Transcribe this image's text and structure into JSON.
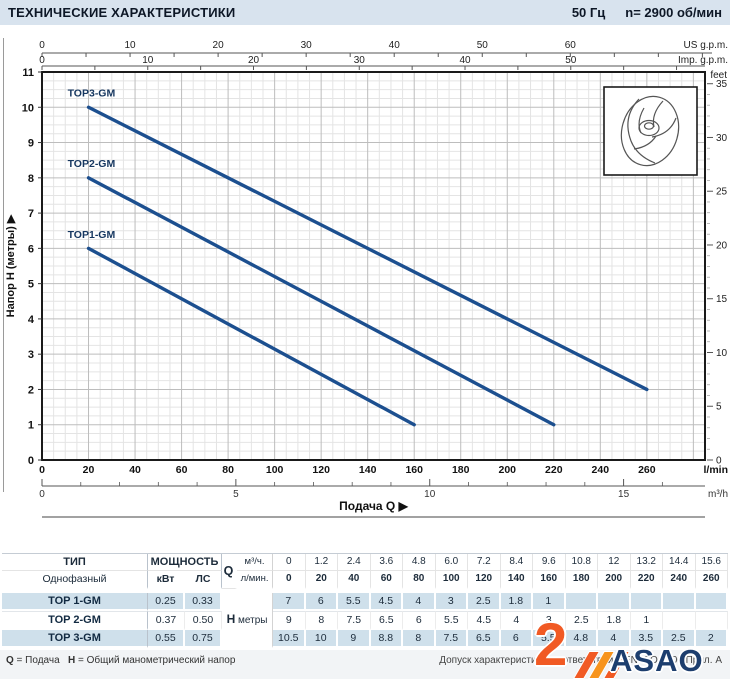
{
  "header": {
    "title": "ТЕХНИЧЕСКИЕ ХАРАКТЕРИСТИКИ",
    "frequency": "50 Гц",
    "speed": "n= 2900  об/мин"
  },
  "chart_data": {
    "type": "line",
    "title": "",
    "xlabel": "Подача Q",
    "ylabel": "Напор H (метры)",
    "x_lmin": [
      0,
      20,
      40,
      60,
      80,
      100,
      120,
      140,
      160,
      180,
      200,
      220,
      240,
      260
    ],
    "series": [
      {
        "name": "TOP1-GM",
        "H_m": [
          7,
          6,
          5.5,
          4.5,
          4,
          3,
          2.5,
          1.8,
          1,
          null,
          null,
          null,
          null,
          null
        ]
      },
      {
        "name": "TOP2-GM",
        "H_m": [
          9,
          8,
          7.5,
          6.5,
          6,
          5.5,
          4.5,
          4,
          3,
          2.5,
          1.8,
          1,
          null,
          null
        ]
      },
      {
        "name": "TOP3-GM",
        "H_m": [
          10.5,
          10,
          9,
          8.8,
          8,
          7.5,
          6.5,
          6,
          5.5,
          4.8,
          4,
          3.5,
          2.5,
          2
        ]
      }
    ],
    "drawn_lines": [
      {
        "name": "TOP3-GM",
        "from": [
          20,
          10
        ],
        "to": [
          260,
          2
        ],
        "label_pos": [
          11,
          10.3
        ]
      },
      {
        "name": "TOP2-GM",
        "from": [
          20,
          8
        ],
        "to": [
          220,
          1
        ],
        "label_pos": [
          11,
          8.3
        ]
      },
      {
        "name": "TOP1-GM",
        "from": [
          20,
          6
        ],
        "to": [
          160,
          1
        ],
        "label_pos": [
          11,
          6.3
        ]
      }
    ],
    "axes": {
      "y_left": {
        "label": "Напор H (метры) ▶",
        "ticks": [
          0,
          1,
          2,
          3,
          4,
          5,
          6,
          7,
          8,
          9,
          10,
          11
        ],
        "range": [
          0,
          11
        ]
      },
      "y_right": {
        "label": "feet",
        "major": [
          0,
          5,
          10,
          15,
          20,
          25,
          30,
          35
        ],
        "max": 35,
        "m_per_unit": 0.3048
      },
      "x_top_us": {
        "label": "US g.p.m.",
        "major": [
          0,
          10,
          20,
          30,
          40,
          50,
          60
        ],
        "minor_step": 5,
        "max": 75,
        "lmin_per_unit": 3.785
      },
      "x_top_imp": {
        "label": "Imp. g.p.m.",
        "major": [
          0,
          10,
          20,
          30,
          40,
          50
        ],
        "minor_step": 5,
        "max": 62,
        "lmin_per_unit": 4.546
      },
      "x_bottom_lmin": {
        "label": "l/min",
        "major": [
          0,
          20,
          40,
          60,
          80,
          100,
          120,
          140,
          160,
          180,
          200,
          220,
          240,
          260
        ],
        "range": [
          0,
          285
        ]
      },
      "x_bottom_m3h": {
        "label": "m³/h",
        "major": [
          0,
          5,
          10,
          15
        ],
        "minor_step": 1,
        "max": 16,
        "lmin_per_unit": 16.667
      },
      "x_title": "Подача Q  ▶"
    },
    "style": {
      "curve_color": "#1c4f8f",
      "label_color": "#15365f",
      "grid_minor": "#e4e4e4",
      "grid_major": "#bdbdbd",
      "border_color": "#1a1a1a"
    },
    "legend_position": "on-curve",
    "grid": true
  },
  "table": {
    "headers": {
      "type": "ТИП",
      "phase": "Однофазный",
      "power": "МОЩНОСТЬ",
      "kw": "кВт",
      "hp": "ЛС",
      "q": "Q",
      "m3h": "м³/ч.",
      "lmin": "л/мин.",
      "h": "H",
      "metres": "метры"
    },
    "q_m3h": [
      "0",
      "1.2",
      "2.4",
      "3.6",
      "4.8",
      "6.0",
      "7.2",
      "8.4",
      "9.6",
      "10.8",
      "12",
      "13.2",
      "14.4",
      "15.6"
    ],
    "q_lmin": [
      "0",
      "20",
      "40",
      "60",
      "80",
      "100",
      "120",
      "140",
      "160",
      "180",
      "200",
      "220",
      "240",
      "260"
    ],
    "rows": [
      {
        "name": "TOP 1-GM",
        "kw": "0.25",
        "hp": "0.33",
        "h": [
          "7",
          "6",
          "5.5",
          "4.5",
          "4",
          "3",
          "2.5",
          "1.8",
          "1",
          "",
          "",
          "",
          "",
          ""
        ]
      },
      {
        "name": "TOP 2-GM",
        "kw": "0.37",
        "hp": "0.50",
        "h": [
          "9",
          "8",
          "7.5",
          "6.5",
          "6",
          "5.5",
          "4.5",
          "4",
          "3",
          "2.5",
          "1.8",
          "1",
          "",
          ""
        ]
      },
      {
        "name": "TOP 3-GM",
        "kw": "0.55",
        "hp": "0.75",
        "h": [
          "10.5",
          "10",
          "9",
          "8.8",
          "8",
          "7.5",
          "6.5",
          "6",
          "5.5",
          "4.8",
          "4",
          "3.5",
          "2.5",
          "2"
        ]
      }
    ]
  },
  "footnotes": {
    "q_symbol": "Q",
    "q_text": " = Подача   ",
    "h_symbol": "H",
    "h_text": " = Общий манометрический напор",
    "tolerance": "Допуск характеристик в соответствии с EN ISO 9906 Прил. А"
  },
  "watermark": {
    "number": "2",
    "text": "ASAO",
    "orange": "#f15a24",
    "navy": "#1d3e6e"
  }
}
